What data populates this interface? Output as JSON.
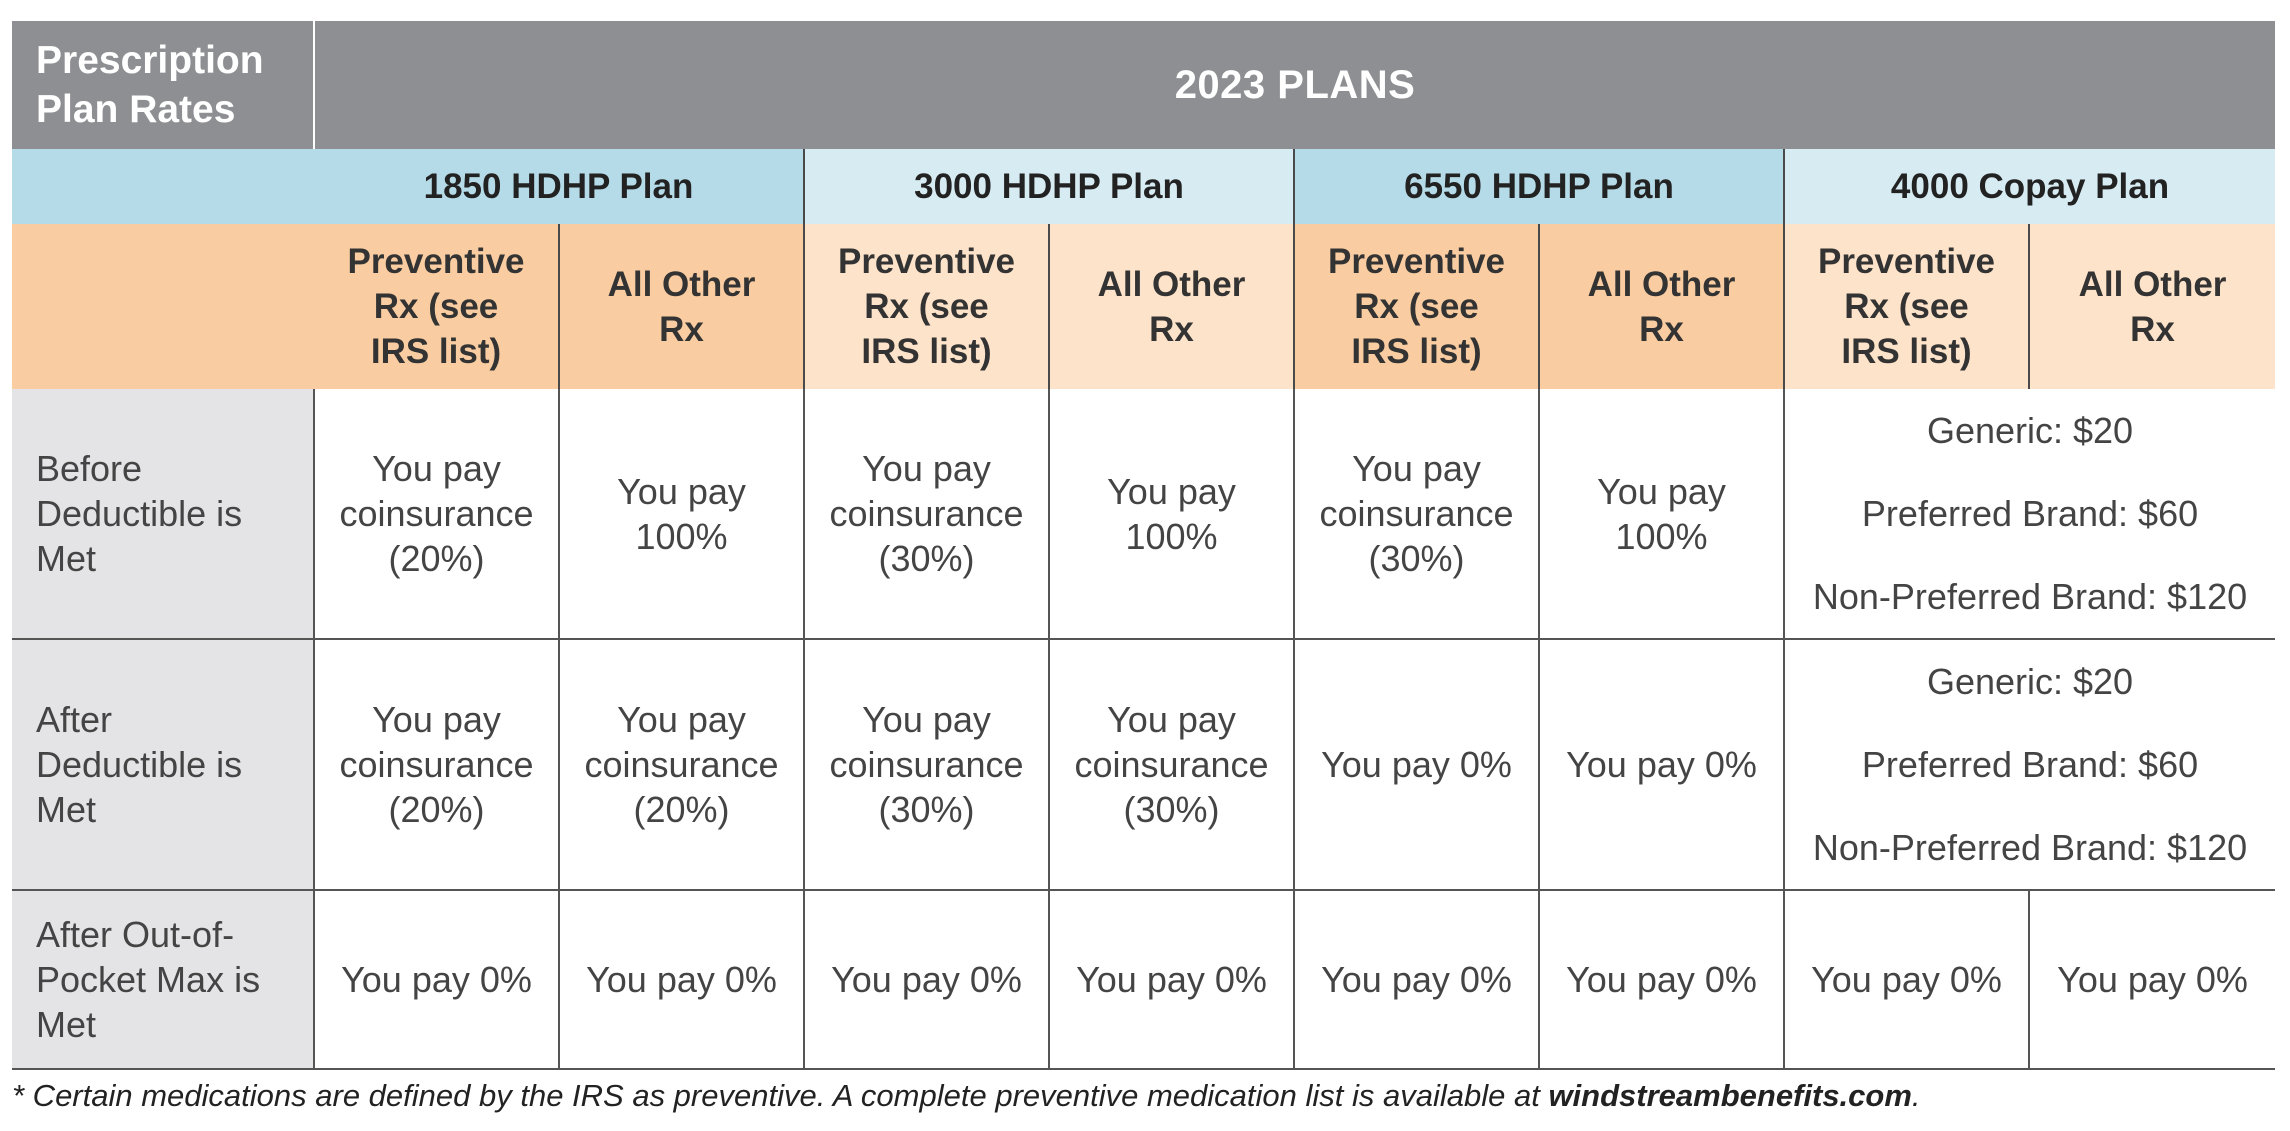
{
  "header": {
    "corner_label": "Prescription Plan Rates",
    "plans_title": "2023 PLANS"
  },
  "plans": [
    {
      "name": "1850 HDHP Plan"
    },
    {
      "name": "3000 HDHP Plan"
    },
    {
      "name": "6550 HDHP Plan"
    },
    {
      "name": "4000 Copay Plan"
    }
  ],
  "sub_headers": {
    "preventive": "Preventive Rx (see IRS list)",
    "other": "All Other Rx"
  },
  "rows": [
    {
      "label": "Before Deductible is Met",
      "cells": [
        "You pay coinsurance (20%)",
        "You pay 100%",
        "You pay coinsurance (30%)",
        "You pay 100%",
        "You pay coinsurance (30%)",
        "You pay 100%"
      ],
      "copay": [
        "Generic: $20",
        "Preferred Brand: $60",
        "Non-Preferred Brand: $120"
      ]
    },
    {
      "label": "After Deductible is Met",
      "cells": [
        "You pay coinsurance (20%)",
        "You pay coinsurance (20%)",
        "You pay coinsurance (30%)",
        "You pay coinsurance (30%)",
        "You pay 0%",
        "You pay 0%"
      ],
      "copay": [
        "Generic: $20",
        "Preferred Brand: $60",
        "Non-Preferred Brand: $120"
      ]
    },
    {
      "label": "After Out-of-Pocket Max is Met",
      "cells": [
        "You pay 0%",
        "You pay 0%",
        "You pay 0%",
        "You pay 0%",
        "You pay 0%",
        "You pay 0%",
        "You pay 0%",
        "You pay 0%"
      ]
    }
  ],
  "footnote": {
    "text": "* Certain medications are defined by the IRS as preventive. A complete preventive medication list is available at ",
    "link": "windstreambenefits.com",
    "end": "."
  }
}
